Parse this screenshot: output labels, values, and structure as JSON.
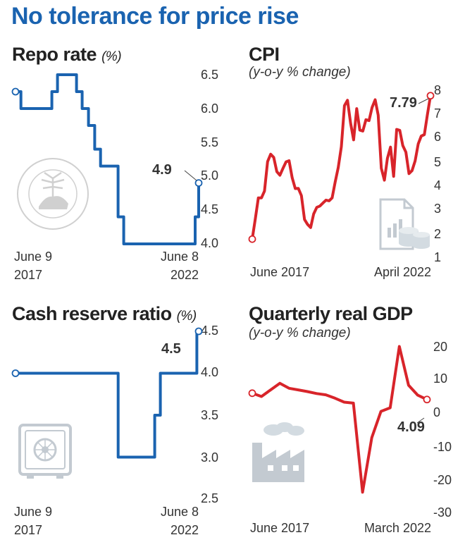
{
  "headline": "No tolerance for price rise",
  "charts": [
    {
      "title": "Repo rate",
      "unit": "(%)",
      "subtitle": "",
      "x_start_label": [
        "June 9",
        "2017"
      ],
      "x_end_label": [
        "June 8",
        "2022"
      ],
      "y_ticks": [
        "6.5",
        "6.0",
        "5.5",
        "5.0",
        "4.5",
        "4.0"
      ],
      "callout": "4.9",
      "icon": "rbi-emblem-icon"
    },
    {
      "title": "CPI",
      "unit": "",
      "subtitle": "(y-o-y % change)",
      "x_start_label": "June 2017",
      "x_end_label": "April 2022",
      "y_ticks": [
        "8",
        "7",
        "6",
        "5",
        "4",
        "3",
        "2",
        "1"
      ],
      "callout": "7.79",
      "icon": "document-coins-icon"
    },
    {
      "title": "Cash reserve ratio",
      "unit": "(%)",
      "subtitle": "",
      "x_start_label": [
        "June 9",
        "2017"
      ],
      "x_end_label": [
        "June 8",
        "2022"
      ],
      "y_ticks": [
        "4.5",
        "4.0",
        "3.5",
        "3.0",
        "2.5"
      ],
      "callout": "4.5",
      "icon": "safe-vault-icon"
    },
    {
      "title": "Quarterly real GDP",
      "unit": "",
      "subtitle": "(y-o-y % change)",
      "x_start_label": "June 2017",
      "x_end_label": "March 2022",
      "y_ticks": [
        "20",
        "10",
        "0",
        "-10",
        "-20",
        "-30"
      ],
      "callout": "4.09",
      "icon": "factory-icon"
    }
  ],
  "chart_data": [
    {
      "type": "line",
      "title": "Repo rate",
      "ylabel": "%",
      "ylim": [
        4.0,
        6.5
      ],
      "step": true,
      "x": [
        "2017-06-09",
        "2017-08-02",
        "2018-06-06",
        "2018-08-01",
        "2019-02-07",
        "2019-04-04",
        "2019-06-06",
        "2019-08-07",
        "2019-10-04",
        "2020-03-27",
        "2020-05-22",
        "2022-05-04",
        "2022-06-08"
      ],
      "values": [
        6.25,
        6.0,
        6.25,
        6.5,
        6.25,
        6.0,
        5.75,
        5.4,
        5.15,
        4.4,
        4.0,
        4.4,
        4.9
      ],
      "color": "#1a63b0"
    },
    {
      "type": "line",
      "title": "CPI",
      "ylabel": "y-o-y % change",
      "ylim": [
        1,
        8
      ],
      "x": [
        "Jun 2017",
        "Jul 2017",
        "Aug 2017",
        "Sep 2017",
        "Oct 2017",
        "Nov 2017",
        "Dec 2017",
        "Jan 2018",
        "Feb 2018",
        "Mar 2018",
        "Apr 2018",
        "May 2018",
        "Jun 2018",
        "Jul 2018",
        "Aug 2018",
        "Sep 2018",
        "Oct 2018",
        "Nov 2018",
        "Dec 2018",
        "Jan 2019",
        "Feb 2019",
        "Mar 2019",
        "Apr 2019",
        "May 2019",
        "Jun 2019",
        "Jul 2019",
        "Aug 2019",
        "Sep 2019",
        "Oct 2019",
        "Nov 2019",
        "Dec 2019",
        "Jan 2020",
        "Feb 2020",
        "Mar 2020",
        "Apr 2020",
        "May 2020",
        "Jun 2020",
        "Jul 2020",
        "Aug 2020",
        "Sep 2020",
        "Oct 2020",
        "Nov 2020",
        "Dec 2020",
        "Jan 2021",
        "Feb 2021",
        "Mar 2021",
        "Apr 2021",
        "May 2021",
        "Jun 2021",
        "Jul 2021",
        "Aug 2021",
        "Sep 2021",
        "Oct 2021",
        "Nov 2021",
        "Dec 2021",
        "Jan 2022",
        "Feb 2022",
        "Mar 2022",
        "Apr 2022"
      ],
      "values": [
        1.46,
        2.36,
        3.28,
        3.28,
        3.58,
        4.88,
        5.21,
        5.07,
        4.44,
        4.28,
        4.58,
        4.87,
        4.92,
        4.17,
        3.69,
        3.7,
        3.38,
        2.33,
        2.11,
        1.97,
        2.57,
        2.86,
        2.92,
        3.05,
        3.18,
        3.15,
        3.28,
        3.99,
        4.62,
        5.54,
        7.35,
        7.59,
        6.58,
        5.84,
        7.22,
        6.27,
        6.23,
        6.73,
        6.69,
        7.27,
        7.61,
        6.93,
        4.59,
        4.06,
        5.03,
        5.52,
        4.23,
        6.3,
        6.26,
        5.59,
        5.3,
        4.35,
        4.48,
        4.91,
        5.66,
        6.01,
        6.07,
        6.95,
        7.79
      ],
      "color": "#d8242a"
    },
    {
      "type": "line",
      "title": "Cash reserve ratio",
      "ylabel": "%",
      "ylim": [
        2.5,
        4.5
      ],
      "step": true,
      "x": [
        "2017-06-09",
        "2020-03-28",
        "2020-12-31",
        "2021-03-27",
        "2021-05-22",
        "2022-05-21",
        "2022-06-08"
      ],
      "values": [
        4.0,
        3.0,
        3.0,
        3.5,
        4.0,
        4.5,
        4.5
      ],
      "color": "#1a63b0"
    },
    {
      "type": "line",
      "title": "Quarterly real GDP",
      "ylabel": "y-o-y % change",
      "ylim": [
        -30,
        20
      ],
      "x": [
        "Jun 2017",
        "Sep 2017",
        "Dec 2017",
        "Mar 2018",
        "Jun 2018",
        "Sep 2018",
        "Dec 2018",
        "Mar 2019",
        "Jun 2019",
        "Sep 2019",
        "Dec 2019",
        "Mar 2020",
        "Jun 2020",
        "Sep 2020",
        "Dec 2020",
        "Mar 2021",
        "Jun 2021",
        "Sep 2021",
        "Dec 2021",
        "Mar 2022"
      ],
      "values": [
        6.0,
        5.0,
        7.0,
        9.0,
        7.5,
        7.0,
        6.5,
        5.9,
        5.5,
        4.5,
        3.3,
        3.0,
        -23.9,
        -7.4,
        0.5,
        1.6,
        20.1,
        8.4,
        5.4,
        4.09
      ],
      "color": "#d8242a"
    }
  ]
}
